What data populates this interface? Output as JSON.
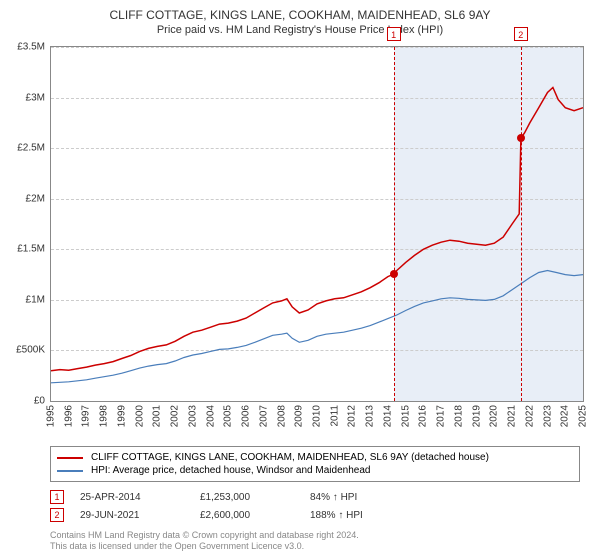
{
  "title": "CLIFF COTTAGE, KINGS LANE, COOKHAM, MAIDENHEAD, SL6 9AY",
  "subtitle": "Price paid vs. HM Land Registry's House Price Index (HPI)",
  "chart": {
    "type": "line",
    "ylim": [
      0,
      3500000
    ],
    "ytick_step": 500000,
    "y_ticks": [
      "£0",
      "£500K",
      "£1M",
      "£1.5M",
      "£2M",
      "£2.5M",
      "£3M",
      "£3.5M"
    ],
    "xlim": [
      1995,
      2025
    ],
    "x_ticks": [
      1995,
      1996,
      1997,
      1998,
      1999,
      2000,
      2001,
      2002,
      2003,
      2004,
      2005,
      2006,
      2007,
      2008,
      2009,
      2010,
      2011,
      2012,
      2013,
      2014,
      2015,
      2016,
      2017,
      2018,
      2019,
      2020,
      2021,
      2022,
      2023,
      2024,
      2025
    ],
    "grid_color": "#cccccc",
    "background_color": "#ffffff",
    "shade_color": "#e8eef7",
    "series": [
      {
        "name": "property",
        "label": "CLIFF COTTAGE, KINGS LANE, COOKHAM, MAIDENHEAD, SL6 9AY (detached house)",
        "color": "#cc0000",
        "line_width": 1.5,
        "data": [
          [
            1995.0,
            300000
          ],
          [
            1995.5,
            310000
          ],
          [
            1996.0,
            305000
          ],
          [
            1996.5,
            320000
          ],
          [
            1997.0,
            335000
          ],
          [
            1997.5,
            355000
          ],
          [
            1998.0,
            370000
          ],
          [
            1998.5,
            390000
          ],
          [
            1999.0,
            420000
          ],
          [
            1999.5,
            450000
          ],
          [
            2000.0,
            490000
          ],
          [
            2000.5,
            520000
          ],
          [
            2001.0,
            540000
          ],
          [
            2001.5,
            555000
          ],
          [
            2002.0,
            590000
          ],
          [
            2002.5,
            640000
          ],
          [
            2003.0,
            680000
          ],
          [
            2003.5,
            700000
          ],
          [
            2004.0,
            730000
          ],
          [
            2004.5,
            760000
          ],
          [
            2005.0,
            770000
          ],
          [
            2005.5,
            790000
          ],
          [
            2006.0,
            820000
          ],
          [
            2006.5,
            870000
          ],
          [
            2007.0,
            920000
          ],
          [
            2007.5,
            970000
          ],
          [
            2008.0,
            990000
          ],
          [
            2008.3,
            1010000
          ],
          [
            2008.6,
            930000
          ],
          [
            2009.0,
            870000
          ],
          [
            2009.5,
            900000
          ],
          [
            2010.0,
            960000
          ],
          [
            2010.5,
            990000
          ],
          [
            2011.0,
            1010000
          ],
          [
            2011.5,
            1020000
          ],
          [
            2012.0,
            1050000
          ],
          [
            2012.5,
            1080000
          ],
          [
            2013.0,
            1120000
          ],
          [
            2013.5,
            1170000
          ],
          [
            2014.0,
            1230000
          ],
          [
            2014.3,
            1253000
          ],
          [
            2014.5,
            1290000
          ],
          [
            2015.0,
            1370000
          ],
          [
            2015.5,
            1440000
          ],
          [
            2016.0,
            1500000
          ],
          [
            2016.5,
            1540000
          ],
          [
            2017.0,
            1570000
          ],
          [
            2017.5,
            1590000
          ],
          [
            2018.0,
            1580000
          ],
          [
            2018.5,
            1560000
          ],
          [
            2019.0,
            1550000
          ],
          [
            2019.5,
            1540000
          ],
          [
            2020.0,
            1560000
          ],
          [
            2020.5,
            1620000
          ],
          [
            2021.0,
            1750000
          ],
          [
            2021.4,
            1850000
          ],
          [
            2021.5,
            2600000
          ],
          [
            2021.7,
            2650000
          ],
          [
            2022.0,
            2750000
          ],
          [
            2022.5,
            2900000
          ],
          [
            2023.0,
            3050000
          ],
          [
            2023.3,
            3100000
          ],
          [
            2023.6,
            2980000
          ],
          [
            2024.0,
            2900000
          ],
          [
            2024.5,
            2870000
          ],
          [
            2025.0,
            2900000
          ]
        ]
      },
      {
        "name": "hpi",
        "label": "HPI: Average price, detached house, Windsor and Maidenhead",
        "color": "#4a7ebb",
        "line_width": 1.2,
        "data": [
          [
            1995.0,
            180000
          ],
          [
            1995.5,
            185000
          ],
          [
            1996.0,
            190000
          ],
          [
            1996.5,
            200000
          ],
          [
            1997.0,
            210000
          ],
          [
            1997.5,
            225000
          ],
          [
            1998.0,
            240000
          ],
          [
            1998.5,
            255000
          ],
          [
            1999.0,
            275000
          ],
          [
            1999.5,
            300000
          ],
          [
            2000.0,
            325000
          ],
          [
            2000.5,
            345000
          ],
          [
            2001.0,
            360000
          ],
          [
            2001.5,
            370000
          ],
          [
            2002.0,
            395000
          ],
          [
            2002.5,
            430000
          ],
          [
            2003.0,
            455000
          ],
          [
            2003.5,
            470000
          ],
          [
            2004.0,
            490000
          ],
          [
            2004.5,
            510000
          ],
          [
            2005.0,
            515000
          ],
          [
            2005.5,
            530000
          ],
          [
            2006.0,
            550000
          ],
          [
            2006.5,
            580000
          ],
          [
            2007.0,
            615000
          ],
          [
            2007.5,
            650000
          ],
          [
            2008.0,
            660000
          ],
          [
            2008.3,
            670000
          ],
          [
            2008.6,
            620000
          ],
          [
            2009.0,
            580000
          ],
          [
            2009.5,
            600000
          ],
          [
            2010.0,
            640000
          ],
          [
            2010.5,
            660000
          ],
          [
            2011.0,
            670000
          ],
          [
            2011.5,
            680000
          ],
          [
            2012.0,
            700000
          ],
          [
            2012.5,
            720000
          ],
          [
            2013.0,
            745000
          ],
          [
            2013.5,
            780000
          ],
          [
            2014.0,
            815000
          ],
          [
            2014.5,
            850000
          ],
          [
            2015.0,
            895000
          ],
          [
            2015.5,
            935000
          ],
          [
            2016.0,
            970000
          ],
          [
            2016.5,
            990000
          ],
          [
            2017.0,
            1010000
          ],
          [
            2017.5,
            1020000
          ],
          [
            2018.0,
            1015000
          ],
          [
            2018.5,
            1005000
          ],
          [
            2019.0,
            1000000
          ],
          [
            2019.5,
            995000
          ],
          [
            2020.0,
            1005000
          ],
          [
            2020.5,
            1040000
          ],
          [
            2021.0,
            1100000
          ],
          [
            2021.5,
            1160000
          ],
          [
            2022.0,
            1220000
          ],
          [
            2022.5,
            1270000
          ],
          [
            2023.0,
            1290000
          ],
          [
            2023.5,
            1270000
          ],
          [
            2024.0,
            1250000
          ],
          [
            2024.5,
            1240000
          ],
          [
            2025.0,
            1250000
          ]
        ]
      }
    ],
    "sales": [
      {
        "n": "1",
        "date": "25-APR-2014",
        "x": 2014.32,
        "price_value": 1253000,
        "price": "£1,253,000",
        "pct": "84% ↑ HPI"
      },
      {
        "n": "2",
        "date": "29-JUN-2021",
        "x": 2021.49,
        "price_value": 2600000,
        "price": "£2,600,000",
        "pct": "188% ↑ HPI"
      }
    ]
  },
  "legend": {
    "border_color": "#888888"
  },
  "footer": {
    "line1": "Contains HM Land Registry data © Crown copyright and database right 2024.",
    "line2": "This data is licensed under the Open Government Licence v3.0."
  },
  "colors": {
    "text": "#333333",
    "muted": "#888888"
  }
}
